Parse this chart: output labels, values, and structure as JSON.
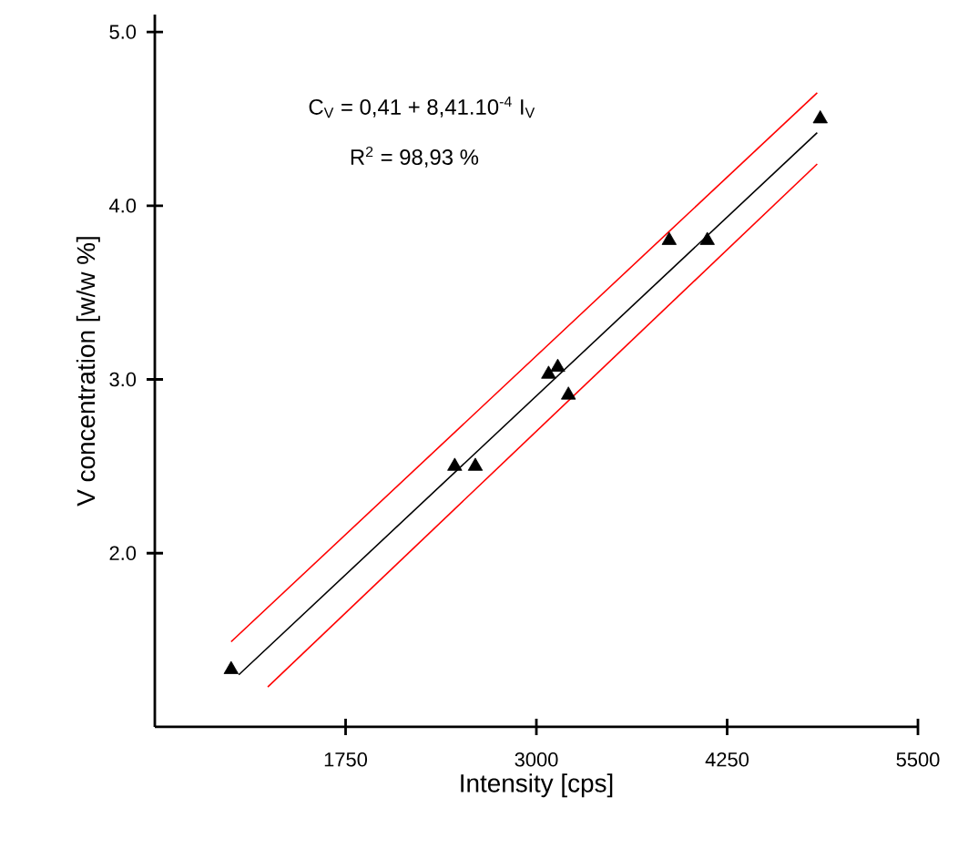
{
  "chart_data": {
    "type": "scatter",
    "xlabel": "Intensity [cps]",
    "ylabel": "V concentration [w/w %]",
    "annotations": [
      "C$_{V}$ = 0,41 + 8,41.10$^{-4}$ I$_{V}$",
      "R$^{2}$ = 98,93 %"
    ],
    "xlim": [
      500,
      5500
    ],
    "ylim": [
      1.0,
      5.1
    ],
    "xticks": [
      1750,
      3000,
      4250,
      5500
    ],
    "yticks": [
      {
        "value": 2,
        "label": "2.0"
      },
      {
        "value": 3,
        "label": "3.0"
      },
      {
        "value": 4,
        "label": "4.0"
      },
      {
        "value": 5,
        "label": "5.0"
      }
    ],
    "series": [
      {
        "type": "line",
        "marker": "none",
        "line_style": "solid",
        "color": "#ff0000",
        "x": [
          1000,
          4840
        ],
        "values": [
          1.49,
          4.65
        ]
      },
      {
        "type": "line",
        "marker": "none",
        "line_style": "solid",
        "color": "#ff0000",
        "x": [
          1240,
          4840
        ],
        "values": [
          1.23,
          4.24
        ]
      },
      {
        "type": "line",
        "marker": "none",
        "line_style": "solid",
        "color": "#000000",
        "x": [
          1050,
          4840
        ],
        "values": [
          1.3,
          4.42
        ]
      },
      {
        "marker": "triangle",
        "color": "#000000",
        "x": [
          1000,
          2465,
          2600,
          3080,
          3140,
          3210,
          3870,
          4120,
          4860
        ],
        "values": [
          1.33,
          2.5,
          2.5,
          3.03,
          3.07,
          2.91,
          3.8,
          3.8,
          4.5
        ]
      }
    ]
  }
}
